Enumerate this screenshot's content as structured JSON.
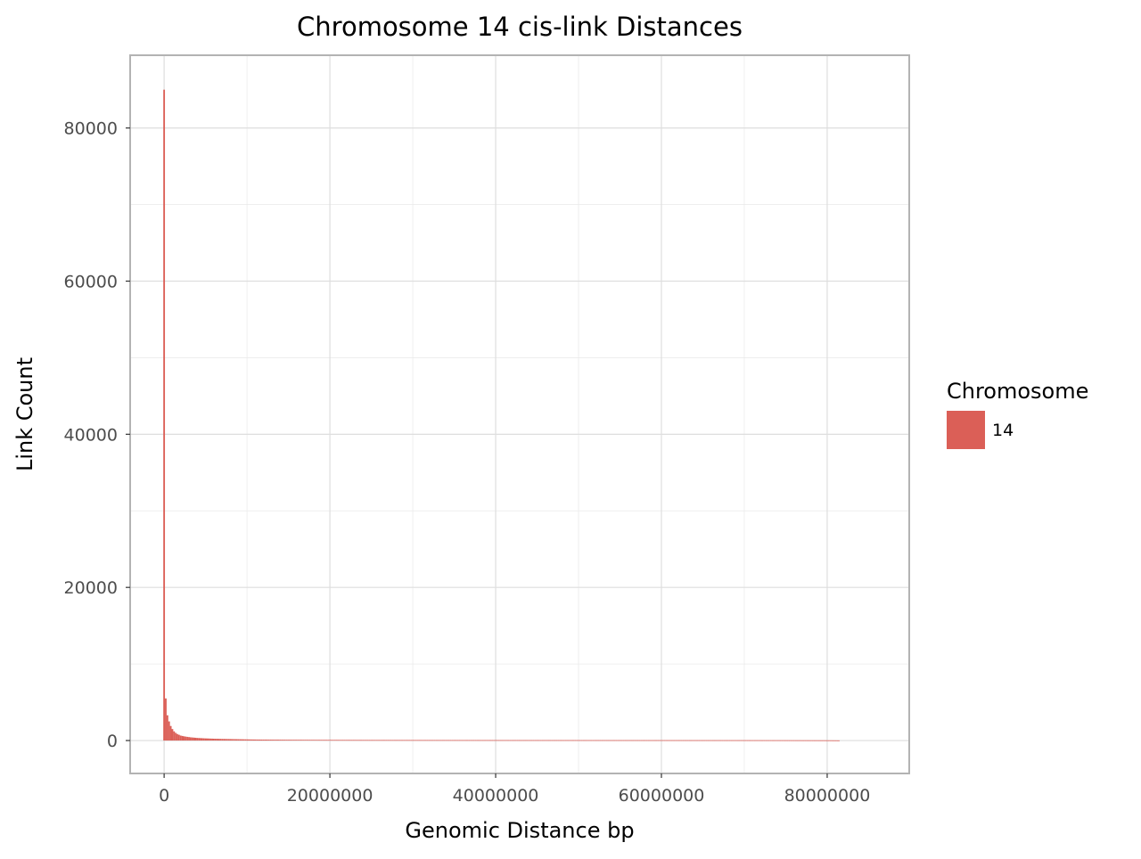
{
  "chart_data": {
    "type": "bar",
    "title": "Chromosome 14 cis-link Distances",
    "xlabel": "Genomic Distance bp",
    "ylabel": "Link Count",
    "xlim": [
      -4100000,
      89900000
    ],
    "ylim": [
      -4300000,
      89500
    ],
    "ylim_note": "",
    "x_ticks": [
      0,
      20000000,
      40000000,
      60000000,
      80000000
    ],
    "x_tick_labels": [
      "0",
      "20000000",
      "40000000",
      "60000000",
      "80000000"
    ],
    "y_ticks": [
      0,
      20000,
      40000,
      60000,
      80000
    ],
    "y_tick_labels": [
      "0",
      "20000",
      "40000",
      "60000",
      "80000"
    ],
    "grid": true,
    "legend": {
      "title": "Chromosome",
      "placement": "right",
      "entries": [
        {
          "label": "14",
          "color": "#db5f57"
        }
      ]
    },
    "series": [
      {
        "name": "14",
        "color": "#db5f57",
        "bin_width": 200000,
        "points": [
          [
            0,
            85000
          ],
          [
            200000,
            5500
          ],
          [
            400000,
            3300
          ],
          [
            600000,
            2500
          ],
          [
            800000,
            1900
          ],
          [
            1000000,
            1500
          ],
          [
            1200000,
            1200
          ],
          [
            1400000,
            1000
          ],
          [
            1600000,
            850
          ],
          [
            1800000,
            750
          ],
          [
            2000000,
            650
          ],
          [
            2400000,
            550
          ],
          [
            2800000,
            480
          ],
          [
            3200000,
            420
          ],
          [
            3600000,
            380
          ],
          [
            4000000,
            340
          ],
          [
            5000000,
            280
          ],
          [
            6000000,
            240
          ],
          [
            7000000,
            210
          ],
          [
            8000000,
            190
          ],
          [
            9000000,
            170
          ],
          [
            10000000,
            150
          ],
          [
            11000000,
            130
          ],
          [
            12000000,
            120
          ],
          [
            15000000,
            100
          ],
          [
            20000000,
            85
          ],
          [
            25000000,
            75
          ],
          [
            30000000,
            70
          ],
          [
            40000000,
            60
          ],
          [
            50000000,
            55
          ],
          [
            60000000,
            50
          ],
          [
            70000000,
            45
          ],
          [
            75000000,
            40
          ],
          [
            80000000,
            30
          ],
          [
            81400000,
            20
          ]
        ]
      }
    ]
  }
}
